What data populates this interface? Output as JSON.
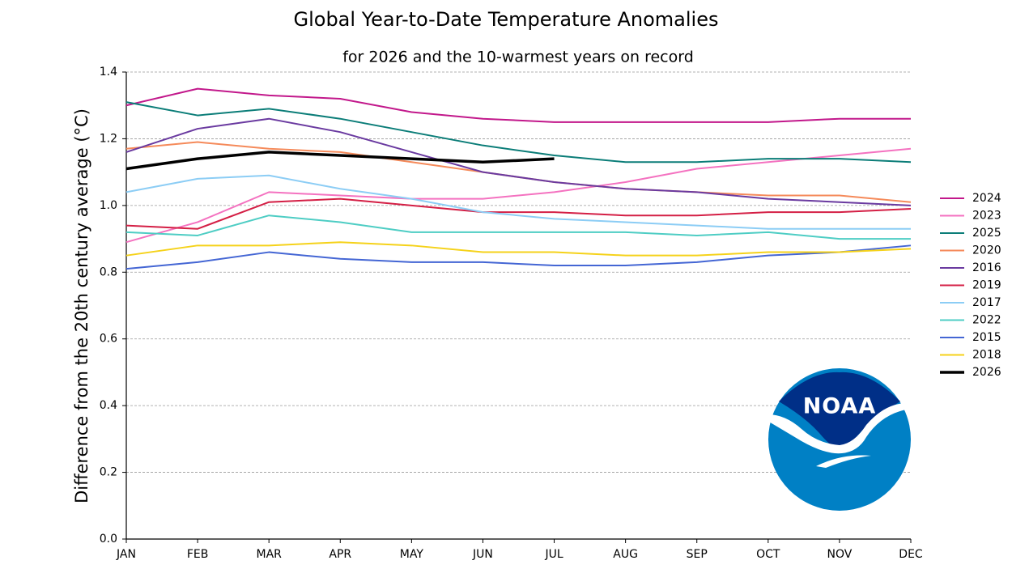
{
  "chart_data": {
    "type": "line",
    "title": "Global Year-to-Date Temperature Anomalies",
    "subtitle": "for 2026 and the 10-warmest years on record",
    "y_label": "Difference from the 20th century average (°C)",
    "logo": "NOAA",
    "categories": [
      "JAN",
      "FEB",
      "MAR",
      "APR",
      "MAY",
      "JUN",
      "JUL",
      "AUG",
      "SEP",
      "OCT",
      "NOV",
      "DEC"
    ],
    "ylim": [
      0,
      1.4
    ],
    "yticks": [
      {
        "value": 0,
        "label": "0.0"
      },
      0.2,
      0.4,
      0.6,
      0.8,
      {
        "value": 1,
        "label": "1.0"
      },
      1.2,
      1.4
    ],
    "grid": true,
    "legend": "right",
    "series": [
      {
        "name": "2024",
        "color": "#c2188b",
        "width": 2,
        "values": [
          1.3,
          1.35,
          1.33,
          1.32,
          1.28,
          1.26,
          1.25,
          1.25,
          1.25,
          1.25,
          1.26,
          1.26
        ]
      },
      {
        "name": "2023",
        "color": "#f472c0",
        "width": 2,
        "values": [
          0.89,
          0.95,
          1.04,
          1.03,
          1.02,
          1.02,
          1.04,
          1.07,
          1.11,
          1.13,
          1.15,
          1.17
        ]
      },
      {
        "name": "2025",
        "color": "#0b7d78",
        "width": 2,
        "values": [
          1.31,
          1.27,
          1.29,
          1.26,
          1.22,
          1.18,
          1.15,
          1.13,
          1.13,
          1.14,
          1.14,
          1.13
        ]
      },
      {
        "name": "2020",
        "color": "#f58a5a",
        "width": 2,
        "values": [
          1.17,
          1.19,
          1.17,
          1.16,
          1.13,
          1.1,
          1.07,
          1.05,
          1.04,
          1.03,
          1.03,
          1.01
        ]
      },
      {
        "name": "2016",
        "color": "#6a3aa0",
        "width": 2,
        "values": [
          1.16,
          1.23,
          1.26,
          1.22,
          1.16,
          1.1,
          1.07,
          1.05,
          1.04,
          1.02,
          1.01,
          1.0
        ]
      },
      {
        "name": "2019",
        "color": "#d41f45",
        "width": 2,
        "values": [
          0.94,
          0.93,
          1.01,
          1.02,
          1.0,
          0.98,
          0.98,
          0.97,
          0.97,
          0.98,
          0.98,
          0.99
        ]
      },
      {
        "name": "2017",
        "color": "#8ccdf5",
        "width": 2,
        "values": [
          1.04,
          1.08,
          1.09,
          1.05,
          1.02,
          0.98,
          0.96,
          0.95,
          0.94,
          0.93,
          0.93,
          0.93
        ]
      },
      {
        "name": "2022",
        "color": "#4ecdc4",
        "width": 2,
        "values": [
          0.92,
          0.91,
          0.97,
          0.95,
          0.92,
          0.92,
          0.92,
          0.92,
          0.91,
          0.92,
          0.9,
          0.9
        ]
      },
      {
        "name": "2015",
        "color": "#4466d4",
        "width": 2,
        "values": [
          0.81,
          0.83,
          0.86,
          0.84,
          0.83,
          0.83,
          0.82,
          0.82,
          0.83,
          0.85,
          0.86,
          0.88
        ]
      },
      {
        "name": "2018",
        "color": "#f5d21a",
        "width": 2,
        "values": [
          0.85,
          0.88,
          0.88,
          0.89,
          0.88,
          0.86,
          0.86,
          0.85,
          0.85,
          0.86,
          0.86,
          0.87
        ]
      },
      {
        "name": "2026",
        "color": "#000000",
        "width": 3.5,
        "values": [
          1.11,
          1.14,
          1.16,
          1.15,
          1.14,
          1.13,
          1.14,
          null,
          null,
          null,
          null,
          null
        ]
      }
    ]
  }
}
